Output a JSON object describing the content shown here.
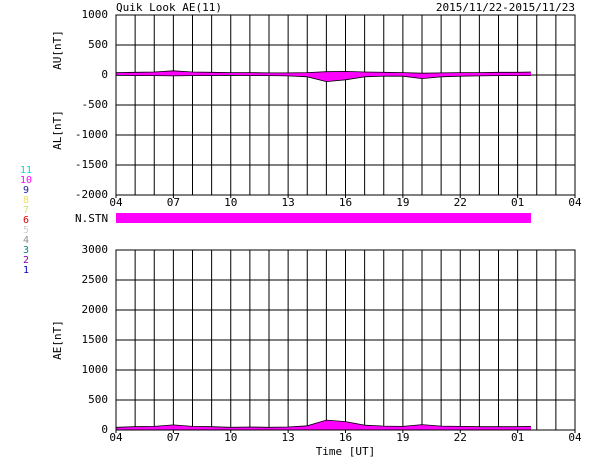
{
  "title": "Quik Look AE(11)",
  "date_range": "2015/11/22-2015/11/23",
  "legend": [
    {
      "value": 11,
      "color": "#00d8d8"
    },
    {
      "value": 10,
      "color": "#ff00ff"
    },
    {
      "value": 9,
      "color": "#1a1aa8"
    },
    {
      "value": 8,
      "color": "#f0e060"
    },
    {
      "value": 7,
      "color": "#c8e878"
    },
    {
      "value": 6,
      "color": "#e00000"
    },
    {
      "value": 5,
      "color": "#d0d0d0"
    },
    {
      "value": 4,
      "color": "#909090"
    },
    {
      "value": 3,
      "color": "#008888"
    },
    {
      "value": 2,
      "color": "#8800aa"
    },
    {
      "value": 1,
      "color": "#0000c0"
    }
  ],
  "station_bar": {
    "label": "N.STN",
    "stations": 10,
    "x": [
      4,
      25.7
    ]
  },
  "chart_data": [
    {
      "type": "area",
      "color": "#ff00ff",
      "grid": true,
      "xgrid_step": 1,
      "x": [
        4,
        5,
        6,
        7,
        8,
        9,
        10,
        11,
        12,
        13,
        14,
        15,
        16,
        17,
        18,
        19,
        20,
        21,
        22,
        23,
        24,
        25,
        25.7
      ],
      "series": [
        {
          "name": "AU[nT]",
          "values": [
            40,
            45,
            50,
            70,
            50,
            45,
            40,
            40,
            35,
            35,
            40,
            55,
            60,
            50,
            45,
            40,
            30,
            35,
            40,
            40,
            45,
            45,
            50
          ]
        },
        {
          "name": "AL[nT]",
          "values": [
            -5,
            -10,
            -10,
            -15,
            -10,
            -10,
            -5,
            -10,
            -10,
            -15,
            -30,
            -110,
            -80,
            -30,
            -20,
            -20,
            -60,
            -30,
            -20,
            -15,
            -10,
            -10,
            -10
          ]
        }
      ],
      "xlim": [
        4,
        28
      ],
      "ylim": [
        -2000,
        1000
      ],
      "xticks": [
        {
          "value": 4,
          "label": "04"
        },
        {
          "value": 7,
          "label": "07"
        },
        10,
        13,
        16,
        19,
        22,
        {
          "value": 25,
          "label": "01"
        },
        {
          "value": 28,
          "label": "04"
        }
      ],
      "yticks": [
        -2000,
        -1500,
        -1000,
        -500,
        0,
        500,
        1000
      ]
    },
    {
      "type": "area",
      "color": "#ff00ff",
      "grid": true,
      "xgrid_step": 1,
      "xlabel": "Time [UT]",
      "x": [
        4,
        5,
        6,
        7,
        8,
        9,
        10,
        11,
        12,
        13,
        14,
        15,
        16,
        17,
        18,
        19,
        20,
        21,
        22,
        23,
        24,
        25,
        25.7
      ],
      "series": [
        {
          "name": "AE[nT]",
          "values": [
            45,
            55,
            60,
            85,
            60,
            55,
            45,
            50,
            45,
            50,
            70,
            165,
            140,
            80,
            65,
            60,
            90,
            65,
            60,
            55,
            55,
            55,
            60
          ]
        }
      ],
      "xlim": [
        4,
        28
      ],
      "ylim": [
        0,
        3000
      ],
      "xticks": [
        {
          "value": 4,
          "label": "04"
        },
        {
          "value": 7,
          "label": "07"
        },
        10,
        13,
        16,
        19,
        22,
        {
          "value": 25,
          "label": "01"
        },
        {
          "value": 28,
          "label": "04"
        }
      ],
      "yticks": [
        0,
        500,
        1000,
        1500,
        2000,
        2500,
        3000
      ]
    }
  ]
}
